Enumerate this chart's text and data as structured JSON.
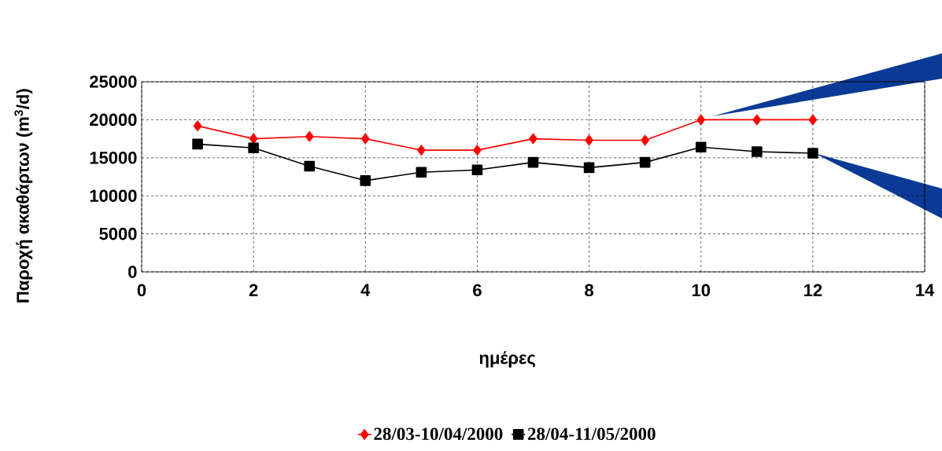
{
  "chart_data": {
    "type": "line",
    "xlabel": "ημέρες",
    "ylabel": "Παροχή ακαθάρτων (m$^{3}$/d)",
    "x": [
      1,
      2,
      3,
      4,
      5,
      6,
      7,
      8,
      9,
      10,
      11,
      12
    ],
    "series": [
      {
        "name": "28/03-10/04/2000",
        "color": "#ff0000",
        "marker": "diamond",
        "values": [
          19200,
          17500,
          17800,
          17500,
          16000,
          16000,
          17500,
          17300,
          17300,
          20000,
          20000,
          20000
        ]
      },
      {
        "name": "28/04-11/05/2000",
        "color": "#000000",
        "marker": "square",
        "values": [
          16800,
          16300,
          13900,
          12000,
          13100,
          13400,
          14400,
          13700,
          14400,
          16400,
          15800,
          15600
        ]
      }
    ],
    "xlim": [
      0,
      14
    ],
    "xticks": [
      0,
      2,
      4,
      6,
      8,
      10,
      12,
      14
    ],
    "ylim": [
      0,
      25000
    ],
    "yticks": [
      0,
      5000,
      10000,
      15000,
      20000,
      25000
    ],
    "grid": true,
    "legend": "bottom"
  }
}
